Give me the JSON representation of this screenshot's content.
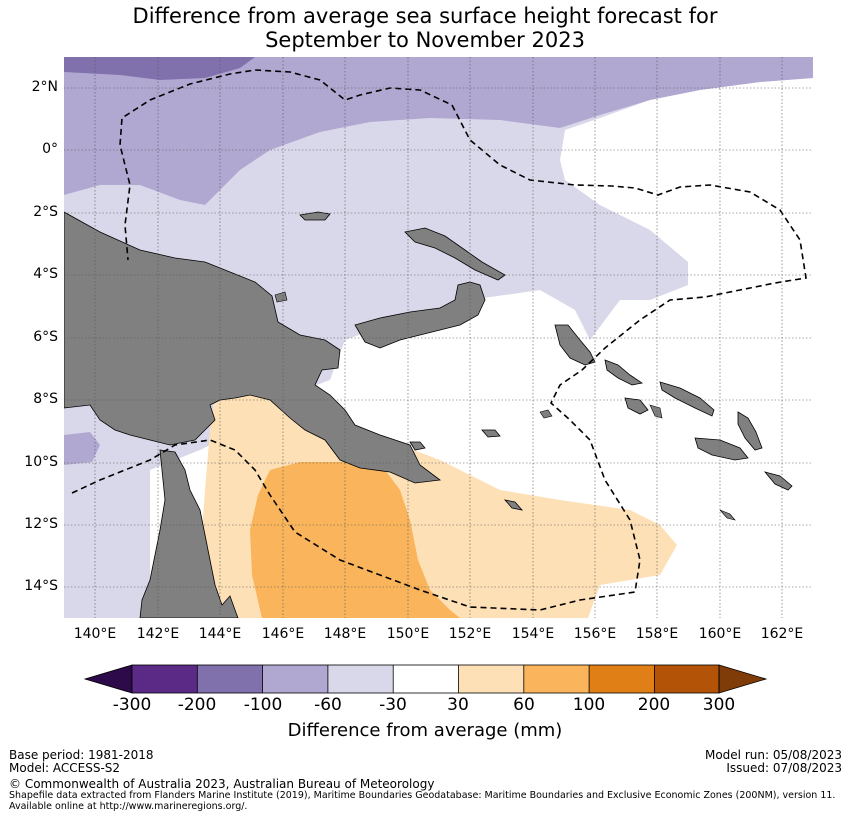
{
  "title_line1": "Difference from average sea surface height forecast for",
  "title_line2": "September to November 2023",
  "lat_labels": [
    "2°N",
    "0°",
    "2°S",
    "4°S",
    "6°S",
    "8°S",
    "10°S",
    "12°S",
    "14°S"
  ],
  "lon_labels": [
    "140°E",
    "142°E",
    "144°E",
    "146°E",
    "148°E",
    "150°E",
    "152°E",
    "154°E",
    "156°E",
    "158°E",
    "160°E",
    "162°E"
  ],
  "colorbar": {
    "ticks": [
      "-300",
      "-200",
      "-100",
      "-60",
      "-30",
      "30",
      "60",
      "100",
      "200",
      "300"
    ],
    "colors": [
      "#2d0a4a",
      "#5b2a86",
      "#8070ac",
      "#b1a8d2",
      "#d9d8ea",
      "#ffffff",
      "#fde0b6",
      "#f9b45c",
      "#e07f16",
      "#b25308",
      "#7f3b08"
    ],
    "title": "Difference from average (mm)"
  },
  "base_period": "Base period: 1981-2018",
  "model": "Model: ACCESS-S2",
  "model_run": "Model run: 05/08/2023",
  "issued": "Issued: 07/08/2023",
  "copyright": "© Commonwealth of Australia 2023, Australian Bureau of Meteorology",
  "shapefile_line1": "Shapefile data extracted from Flanders Marine Institute (2019), Maritime Boundaries Geodatabase: Maritime Boundaries and Exclusive Economic Zones (200NM), version 11.",
  "shapefile_line2": "Available online at http://www.marineregions.org/."
}
